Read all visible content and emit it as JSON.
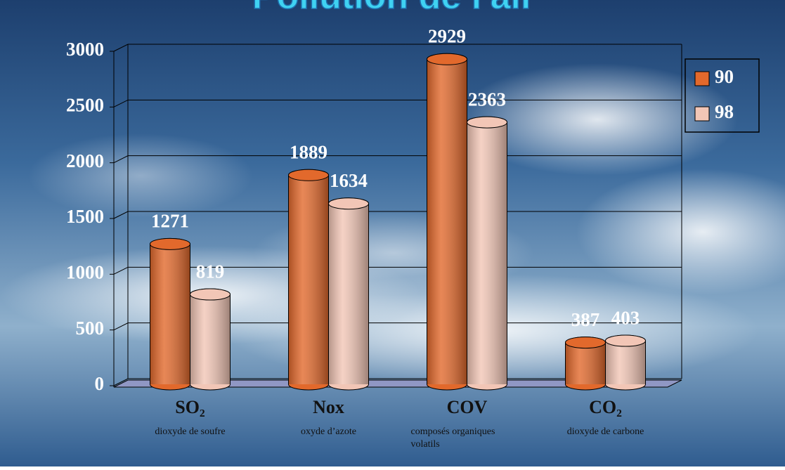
{
  "chart_data": {
    "type": "bar3d",
    "title": "Pollution de l'air",
    "categories": [
      "SO₂",
      "Nox",
      "COV",
      "CO₂"
    ],
    "category_notes": [
      "dioxyde de soufre",
      "oxyde d’azote",
      "composés organiques volatils",
      "dioxyde de carbone"
    ],
    "series": [
      {
        "name": "90",
        "color": "#e2692c",
        "values": [
          1271,
          1889,
          2929,
          387
        ]
      },
      {
        "name": "98",
        "color": "#f2c6b6",
        "values": [
          819,
          1634,
          2363,
          403
        ]
      }
    ],
    "ylim": [
      0,
      3000
    ],
    "yticks": [
      0,
      500,
      1000,
      1500,
      2000,
      2500,
      3000
    ],
    "grid": true,
    "legend": "top-right",
    "floor_color": "#9097c4"
  }
}
